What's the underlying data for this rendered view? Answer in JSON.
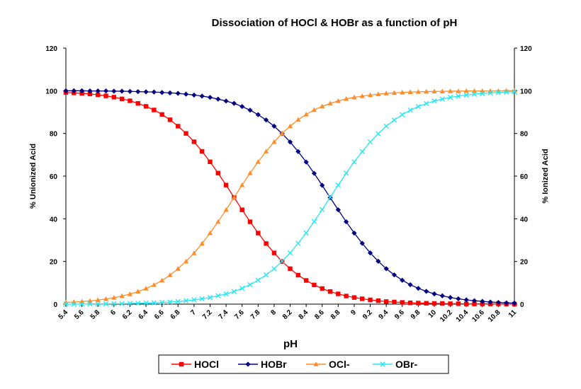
{
  "chart_data": {
    "type": "line",
    "title": "Dissociation of HOCl & HOBr as a function of pH",
    "xlabel": "pH",
    "ylabel_left": "% Unionized Acid",
    "ylabel_right": "% Ionized Acid",
    "ylim": [
      0,
      120
    ],
    "y_ticks": [
      "0",
      "20",
      "40",
      "60",
      "80",
      "100",
      "120"
    ],
    "x_ticks": [
      "5.4",
      "5.6",
      "5.8",
      "6",
      "6.2",
      "6.4",
      "6.6",
      "6.8",
      "7",
      "7.2",
      "7.4",
      "7.6",
      "7.8",
      "8",
      "8.2",
      "8.4",
      "8.6",
      "8.8",
      "9",
      "9.2",
      "9.4",
      "9.6",
      "9.8",
      "10",
      "10.2",
      "10.4",
      "10.6",
      "10.8",
      "11"
    ],
    "x": [
      5.4,
      5.5,
      5.6,
      5.7,
      5.8,
      5.9,
      6.0,
      6.1,
      6.2,
      6.3,
      6.4,
      6.5,
      6.6,
      6.7,
      6.8,
      6.9,
      7.0,
      7.1,
      7.2,
      7.3,
      7.4,
      7.5,
      7.6,
      7.7,
      7.8,
      7.9,
      8.0,
      8.1,
      8.2,
      8.3,
      8.4,
      8.5,
      8.6,
      8.7,
      8.8,
      8.9,
      9.0,
      9.1,
      9.2,
      9.3,
      9.4,
      9.5,
      9.6,
      9.7,
      9.8,
      9.9,
      10.0,
      10.1,
      10.2,
      10.3,
      10.4,
      10.5,
      10.6,
      10.7,
      10.8,
      10.9,
      11.0
    ],
    "series": [
      {
        "name": "HOCl",
        "color": "#ff0000",
        "marker": "square",
        "values": [
          99.2,
          99.0,
          98.8,
          98.5,
          98.1,
          97.6,
          97.0,
          96.2,
          95.3,
          94.1,
          92.7,
          91.0,
          88.9,
          86.4,
          83.4,
          80.0,
          76.1,
          71.6,
          66.7,
          61.4,
          55.8,
          50.0,
          44.2,
          38.6,
          33.3,
          28.4,
          24.0,
          20.0,
          16.6,
          13.6,
          11.1,
          9.0,
          7.3,
          5.9,
          4.8,
          3.8,
          3.1,
          2.5,
          2.0,
          1.6,
          1.2,
          1.0,
          0.8,
          0.6,
          0.5,
          0.4,
          0.3,
          0.3,
          0.2,
          0.2,
          0.1,
          0.1,
          0.1,
          0.1,
          0.1,
          0.0,
          0.0
        ]
      },
      {
        "name": "HOBr",
        "color": "#000080",
        "marker": "diamond",
        "values": [
          100.0,
          100.0,
          100.0,
          99.9,
          99.9,
          99.9,
          99.8,
          99.8,
          99.7,
          99.6,
          99.5,
          99.4,
          99.2,
          99.0,
          98.8,
          98.4,
          98.0,
          97.5,
          96.9,
          96.1,
          95.2,
          94.1,
          92.6,
          90.9,
          88.8,
          86.3,
          83.4,
          79.9,
          76.0,
          71.5,
          66.6,
          61.3,
          55.7,
          49.9,
          44.2,
          38.6,
          33.3,
          28.5,
          24.0,
          20.1,
          16.6,
          13.7,
          11.2,
          9.1,
          7.4,
          6.0,
          4.8,
          3.9,
          3.1,
          2.5,
          2.0,
          1.6,
          1.3,
          1.0,
          0.8,
          0.6,
          0.5
        ]
      },
      {
        "name": "OCl-",
        "color": "#ff8c2a",
        "marker": "triangle",
        "values": [
          0.8,
          1.0,
          1.2,
          1.5,
          1.9,
          2.4,
          3.0,
          3.8,
          4.7,
          5.9,
          7.3,
          9.0,
          11.1,
          13.6,
          16.6,
          20.0,
          23.9,
          28.4,
          33.3,
          38.6,
          44.2,
          50.0,
          55.8,
          61.4,
          66.7,
          71.6,
          76.0,
          80.0,
          83.4,
          86.4,
          88.9,
          91.0,
          92.7,
          94.1,
          95.2,
          96.2,
          96.9,
          97.5,
          98.0,
          98.4,
          98.8,
          99.0,
          99.2,
          99.4,
          99.5,
          99.6,
          99.7,
          99.7,
          99.8,
          99.8,
          99.9,
          99.9,
          99.9,
          99.9,
          99.9,
          100.0,
          100.0
        ]
      },
      {
        "name": "OBr-",
        "color": "#29e6f0",
        "marker": "x",
        "values": [
          0.0,
          0.0,
          0.0,
          0.1,
          0.1,
          0.1,
          0.2,
          0.2,
          0.3,
          0.4,
          0.5,
          0.6,
          0.8,
          1.0,
          1.2,
          1.6,
          2.0,
          2.5,
          3.1,
          3.9,
          4.8,
          5.9,
          7.4,
          9.1,
          11.2,
          13.7,
          16.6,
          20.1,
          24.0,
          28.5,
          33.4,
          38.7,
          44.3,
          50.1,
          55.8,
          61.4,
          66.7,
          71.5,
          76.0,
          79.9,
          83.4,
          86.3,
          88.8,
          90.9,
          92.6,
          94.0,
          95.2,
          96.1,
          96.9,
          97.5,
          98.0,
          98.4,
          98.7,
          99.0,
          99.2,
          99.4,
          99.5
        ]
      }
    ],
    "legend_position": "bottom",
    "grid": false
  }
}
